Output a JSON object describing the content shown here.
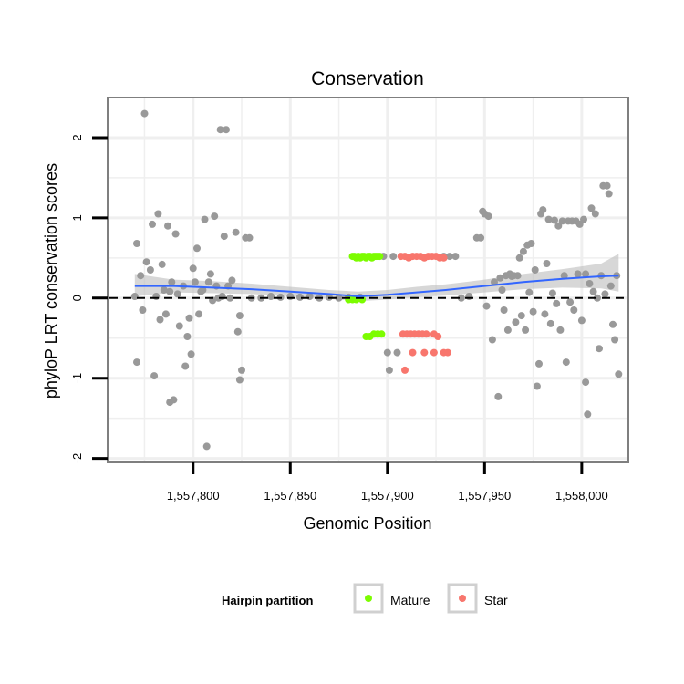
{
  "colors": {
    "other": "#999999",
    "mature": "#7CFC00",
    "star": "#F8766D",
    "smooth": "#3366FF",
    "ribbon": "#BDBDBD",
    "grid": "#EFEFEF",
    "panel_border": "#7F7F7F"
  },
  "chart_data": {
    "type": "scatter",
    "title": "Conservation",
    "xlabel": "Genomic Position",
    "ylabel": "phyloP LRT conservation scores",
    "xlim": [
      1557756,
      1558024
    ],
    "ylim": [
      -2.05,
      2.5
    ],
    "x_ticks": [
      1557800,
      1557850,
      1557900,
      1557950,
      1558000
    ],
    "x_tick_labels": [
      "1,557,800",
      "1,557,850",
      "1,557,900",
      "1,557,950",
      "1,558,000"
    ],
    "y_ticks": [
      -2,
      -1,
      0,
      1,
      2
    ],
    "y_tick_labels": [
      "-2",
      "-1",
      "0",
      "1",
      "2"
    ],
    "reference_line": {
      "y": 0,
      "style": "dashed"
    },
    "legend": {
      "title": "Hairpin partition",
      "position": "bottom",
      "entries": [
        {
          "name": "Mature",
          "color_key": "mature"
        },
        {
          "name": "Star",
          "color_key": "star"
        }
      ]
    },
    "smooth": {
      "x": [
        1557770,
        1557790,
        1557810,
        1557830,
        1557850,
        1557870,
        1557885,
        1557900,
        1557915,
        1557930,
        1557950,
        1557970,
        1557990,
        1558010,
        1558019
      ],
      "y": [
        0.15,
        0.15,
        0.13,
        0.11,
        0.08,
        0.05,
        0.02,
        0.04,
        0.07,
        0.1,
        0.15,
        0.2,
        0.24,
        0.27,
        0.28
      ],
      "ci_low": [
        0.02,
        0.07,
        0.06,
        0.05,
        0.02,
        -0.01,
        -0.04,
        -0.02,
        0.01,
        0.03,
        0.07,
        0.11,
        0.13,
        0.12,
        0.08
      ],
      "ci_high": [
        0.3,
        0.23,
        0.21,
        0.18,
        0.14,
        0.1,
        0.08,
        0.1,
        0.14,
        0.17,
        0.23,
        0.3,
        0.36,
        0.43,
        0.55
      ]
    },
    "series": [
      {
        "name": "Other",
        "color_key": "other",
        "points": [
          [
            1557770,
            0.02
          ],
          [
            1557771,
            0.68
          ],
          [
            1557771,
            -0.8
          ],
          [
            1557773,
            0.28
          ],
          [
            1557774,
            -0.15
          ],
          [
            1557775,
            2.3
          ],
          [
            1557776,
            0.45
          ],
          [
            1557778,
            0.35
          ],
          [
            1557779,
            0.92
          ],
          [
            1557780,
            -0.97
          ],
          [
            1557781,
            0.02
          ],
          [
            1557782,
            1.05
          ],
          [
            1557783,
            -0.27
          ],
          [
            1557784,
            0.42
          ],
          [
            1557785,
            0.1
          ],
          [
            1557786,
            -0.2
          ],
          [
            1557787,
            0.9
          ],
          [
            1557788,
            0.08
          ],
          [
            1557788,
            -1.3
          ],
          [
            1557789,
            0.2
          ],
          [
            1557790,
            -1.27
          ],
          [
            1557791,
            0.8
          ],
          [
            1557792,
            0.05
          ],
          [
            1557793,
            -0.35
          ],
          [
            1557795,
            0.15
          ],
          [
            1557796,
            -0.85
          ],
          [
            1557797,
            -0.48
          ],
          [
            1557798,
            -0.25
          ],
          [
            1557799,
            -0.7
          ],
          [
            1557800,
            0.37
          ],
          [
            1557801,
            0.2
          ],
          [
            1557802,
            0.62
          ],
          [
            1557803,
            -0.2
          ],
          [
            1557804,
            0.08
          ],
          [
            1557805,
            0.1
          ],
          [
            1557806,
            0.98
          ],
          [
            1557807,
            -1.85
          ],
          [
            1557808,
            0.2
          ],
          [
            1557809,
            0.3
          ],
          [
            1557810,
            -0.03
          ],
          [
            1557811,
            1.02
          ],
          [
            1557812,
            0.15
          ],
          [
            1557813,
            0.0
          ],
          [
            1557814,
            2.1
          ],
          [
            1557815,
            0.02
          ],
          [
            1557816,
            0.77
          ],
          [
            1557817,
            2.1
          ],
          [
            1557818,
            0.15
          ],
          [
            1557819,
            0.0
          ],
          [
            1557820,
            0.22
          ],
          [
            1557822,
            0.82
          ],
          [
            1557823,
            -0.42
          ],
          [
            1557824,
            -0.22
          ],
          [
            1557824,
            -1.02
          ],
          [
            1557825,
            -0.9
          ],
          [
            1557827,
            0.75
          ],
          [
            1557829,
            0.75
          ],
          [
            1557830,
            0.0
          ],
          [
            1557835,
            0.0
          ],
          [
            1557840,
            0.02
          ],
          [
            1557845,
            0.01
          ],
          [
            1557850,
            0.02
          ],
          [
            1557855,
            0.01
          ],
          [
            1557860,
            0.02
          ],
          [
            1557865,
            0.0
          ],
          [
            1557870,
            0.01
          ],
          [
            1557875,
            0.0
          ],
          [
            1557880,
            0.01
          ],
          [
            1557886,
            0.01
          ],
          [
            1557898,
            0.52
          ],
          [
            1557900,
            -0.68
          ],
          [
            1557901,
            -0.9
          ],
          [
            1557903,
            0.52
          ],
          [
            1557905,
            -0.68
          ],
          [
            1557929,
            0.52
          ],
          [
            1557932,
            0.52
          ],
          [
            1557935,
            0.52
          ],
          [
            1557938,
            0.0
          ],
          [
            1557942,
            0.02
          ],
          [
            1557946,
            0.75
          ],
          [
            1557948,
            0.75
          ],
          [
            1557949,
            1.08
          ],
          [
            1557950,
            1.05
          ],
          [
            1557951,
            -0.1
          ],
          [
            1557952,
            1.02
          ],
          [
            1557954,
            -0.52
          ],
          [
            1557955,
            0.2
          ],
          [
            1557957,
            -1.23
          ],
          [
            1557958,
            0.25
          ],
          [
            1557959,
            0.1
          ],
          [
            1557960,
            -0.15
          ],
          [
            1557961,
            0.28
          ],
          [
            1557962,
            -0.4
          ],
          [
            1557963,
            0.3
          ],
          [
            1557964,
            0.27
          ],
          [
            1557965,
            0.28
          ],
          [
            1557966,
            -0.3
          ],
          [
            1557967,
            0.28
          ],
          [
            1557968,
            0.5
          ],
          [
            1557969,
            -0.22
          ],
          [
            1557970,
            0.58
          ],
          [
            1557971,
            -0.4
          ],
          [
            1557972,
            0.66
          ],
          [
            1557973,
            0.07
          ],
          [
            1557974,
            0.68
          ],
          [
            1557975,
            -0.17
          ],
          [
            1557976,
            0.35
          ],
          [
            1557977,
            -1.1
          ],
          [
            1557978,
            -0.82
          ],
          [
            1557979,
            1.05
          ],
          [
            1557980,
            1.1
          ],
          [
            1557981,
            -0.2
          ],
          [
            1557982,
            0.43
          ],
          [
            1557983,
            0.98
          ],
          [
            1557984,
            -0.32
          ],
          [
            1557985,
            0.06
          ],
          [
            1557986,
            0.97
          ],
          [
            1557987,
            -0.07
          ],
          [
            1557988,
            0.9
          ],
          [
            1557989,
            -0.4
          ],
          [
            1557990,
            0.96
          ],
          [
            1557991,
            0.28
          ],
          [
            1557992,
            -0.8
          ],
          [
            1557993,
            0.96
          ],
          [
            1557994,
            -0.05
          ],
          [
            1557995,
            0.96
          ],
          [
            1557996,
            -0.15
          ],
          [
            1557997,
            0.96
          ],
          [
            1557998,
            0.3
          ],
          [
            1557999,
            0.92
          ],
          [
            1558000,
            -0.28
          ],
          [
            1558001,
            0.98
          ],
          [
            1558002,
            -1.05
          ],
          [
            1558002,
            0.3
          ],
          [
            1558003,
            -1.45
          ],
          [
            1558004,
            0.18
          ],
          [
            1558005,
            1.12
          ],
          [
            1558006,
            0.08
          ],
          [
            1558007,
            1.05
          ],
          [
            1558008,
            0.0
          ],
          [
            1558009,
            -0.63
          ],
          [
            1558010,
            0.28
          ],
          [
            1558011,
            1.4
          ],
          [
            1558012,
            0.05
          ],
          [
            1558013,
            1.4
          ],
          [
            1558014,
            1.3
          ],
          [
            1558015,
            0.15
          ],
          [
            1558016,
            -0.33
          ],
          [
            1558017,
            -0.52
          ],
          [
            1558018,
            0.28
          ],
          [
            1558019,
            -0.95
          ]
        ]
      },
      {
        "name": "Mature",
        "color_key": "mature",
        "points": [
          [
            1557882,
            0.52
          ],
          [
            1557883,
            0.52
          ],
          [
            1557884,
            0.5
          ],
          [
            1557885,
            0.52
          ],
          [
            1557886,
            0.5
          ],
          [
            1557887,
            0.52
          ],
          [
            1557888,
            0.52
          ],
          [
            1557889,
            0.5
          ],
          [
            1557890,
            0.52
          ],
          [
            1557891,
            0.52
          ],
          [
            1557892,
            0.5
          ],
          [
            1557893,
            0.52
          ],
          [
            1557894,
            0.52
          ],
          [
            1557895,
            0.52
          ],
          [
            1557896,
            0.52
          ],
          [
            1557880,
            -0.02
          ],
          [
            1557882,
            -0.02
          ],
          [
            1557884,
            -0.02
          ],
          [
            1557885,
            0.0
          ],
          [
            1557887,
            -0.02
          ],
          [
            1557889,
            -0.48
          ],
          [
            1557891,
            -0.48
          ],
          [
            1557893,
            -0.45
          ],
          [
            1557895,
            -0.45
          ],
          [
            1557897,
            -0.45
          ]
        ]
      },
      {
        "name": "Star",
        "color_key": "star",
        "points": [
          [
            1557907,
            0.52
          ],
          [
            1557909,
            0.52
          ],
          [
            1557911,
            0.5
          ],
          [
            1557913,
            0.52
          ],
          [
            1557915,
            0.52
          ],
          [
            1557917,
            0.52
          ],
          [
            1557919,
            0.5
          ],
          [
            1557921,
            0.52
          ],
          [
            1557923,
            0.52
          ],
          [
            1557925,
            0.52
          ],
          [
            1557927,
            0.5
          ],
          [
            1557929,
            0.5
          ],
          [
            1557908,
            -0.45
          ],
          [
            1557910,
            -0.45
          ],
          [
            1557912,
            -0.45
          ],
          [
            1557914,
            -0.45
          ],
          [
            1557916,
            -0.45
          ],
          [
            1557918,
            -0.45
          ],
          [
            1557920,
            -0.45
          ],
          [
            1557924,
            -0.45
          ],
          [
            1557926,
            -0.48
          ],
          [
            1557913,
            -0.68
          ],
          [
            1557919,
            -0.68
          ],
          [
            1557924,
            -0.68
          ],
          [
            1557929,
            -0.68
          ],
          [
            1557931,
            -0.68
          ],
          [
            1557909,
            -0.9
          ]
        ]
      }
    ]
  }
}
